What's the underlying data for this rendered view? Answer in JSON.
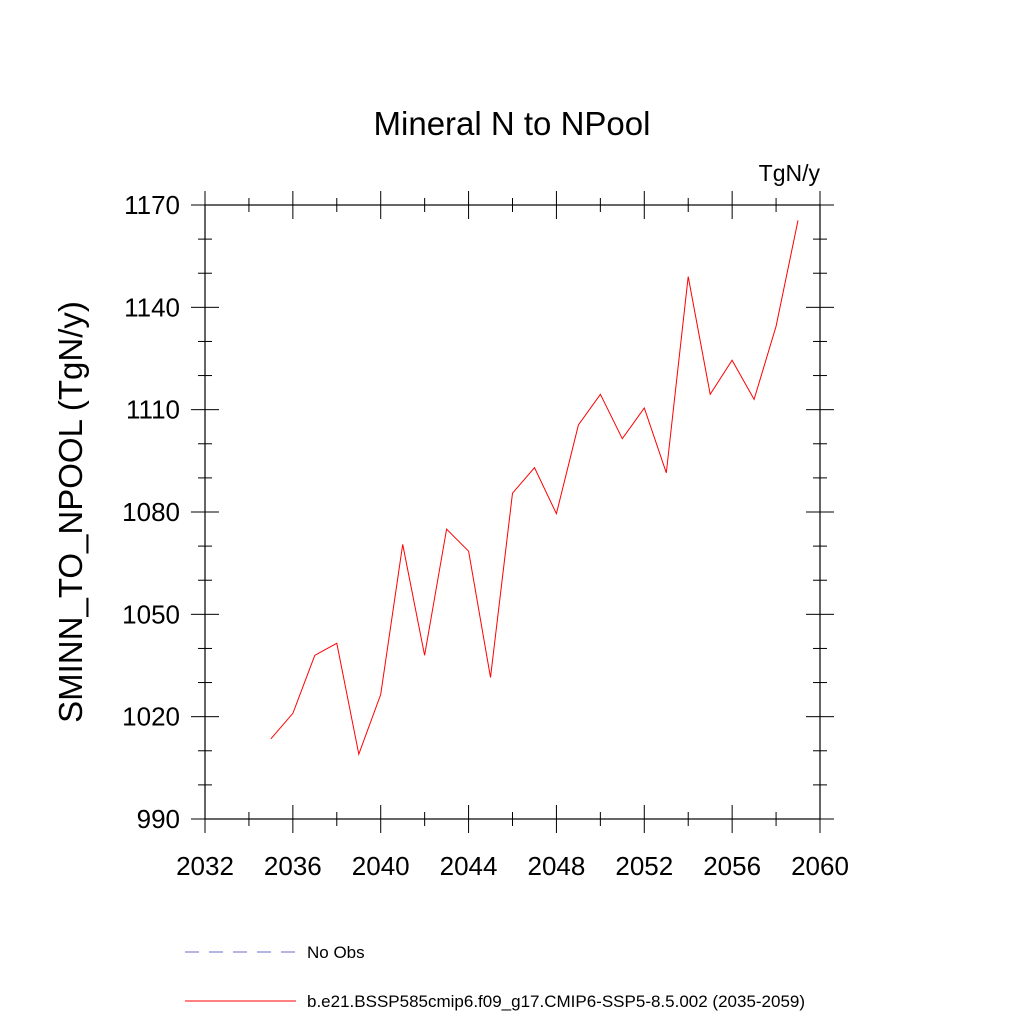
{
  "chart_data": {
    "type": "line",
    "title": "Mineral N to NPool",
    "units_label": "TgN/y",
    "ylabel": "SMINN_TO_NPOOL  (TgN/y)",
    "xlabel": "",
    "xlim": [
      2032,
      2060
    ],
    "ylim": [
      990,
      1170
    ],
    "x_ticks": [
      2032,
      2036,
      2040,
      2044,
      2048,
      2052,
      2056,
      2060
    ],
    "y_ticks": [
      990,
      1020,
      1050,
      1080,
      1110,
      1140,
      1170
    ],
    "x_minor_step": 2,
    "y_minor_step": 10,
    "grid": false,
    "legend_position": "bottom",
    "series": [
      {
        "name": "No Obs",
        "color": "#6e6ec8",
        "dash": "dashed",
        "x": [],
        "values": []
      },
      {
        "name": "b.e21.BSSP585cmip6.f09_g17.CMIP6-SSP5-8.5.002 (2035-2059)",
        "color": "#ff0000",
        "dash": "solid",
        "x": [
          2035,
          2036,
          2037,
          2038,
          2039,
          2040,
          2041,
          2042,
          2043,
          2044,
          2045,
          2046,
          2047,
          2048,
          2049,
          2050,
          2051,
          2052,
          2053,
          2054,
          2055,
          2056,
          2057,
          2058,
          2059
        ],
        "values": [
          1013.5,
          1021,
          1038,
          1041.5,
          1009,
          1026.5,
          1070.5,
          1038,
          1075,
          1068.5,
          1031.5,
          1085.5,
          1093,
          1079.5,
          1105.5,
          1114.5,
          1101.5,
          1110.5,
          1091.5,
          1149,
          1114.5,
          1124.5,
          1113,
          1134.5,
          1165.5
        ]
      }
    ]
  }
}
